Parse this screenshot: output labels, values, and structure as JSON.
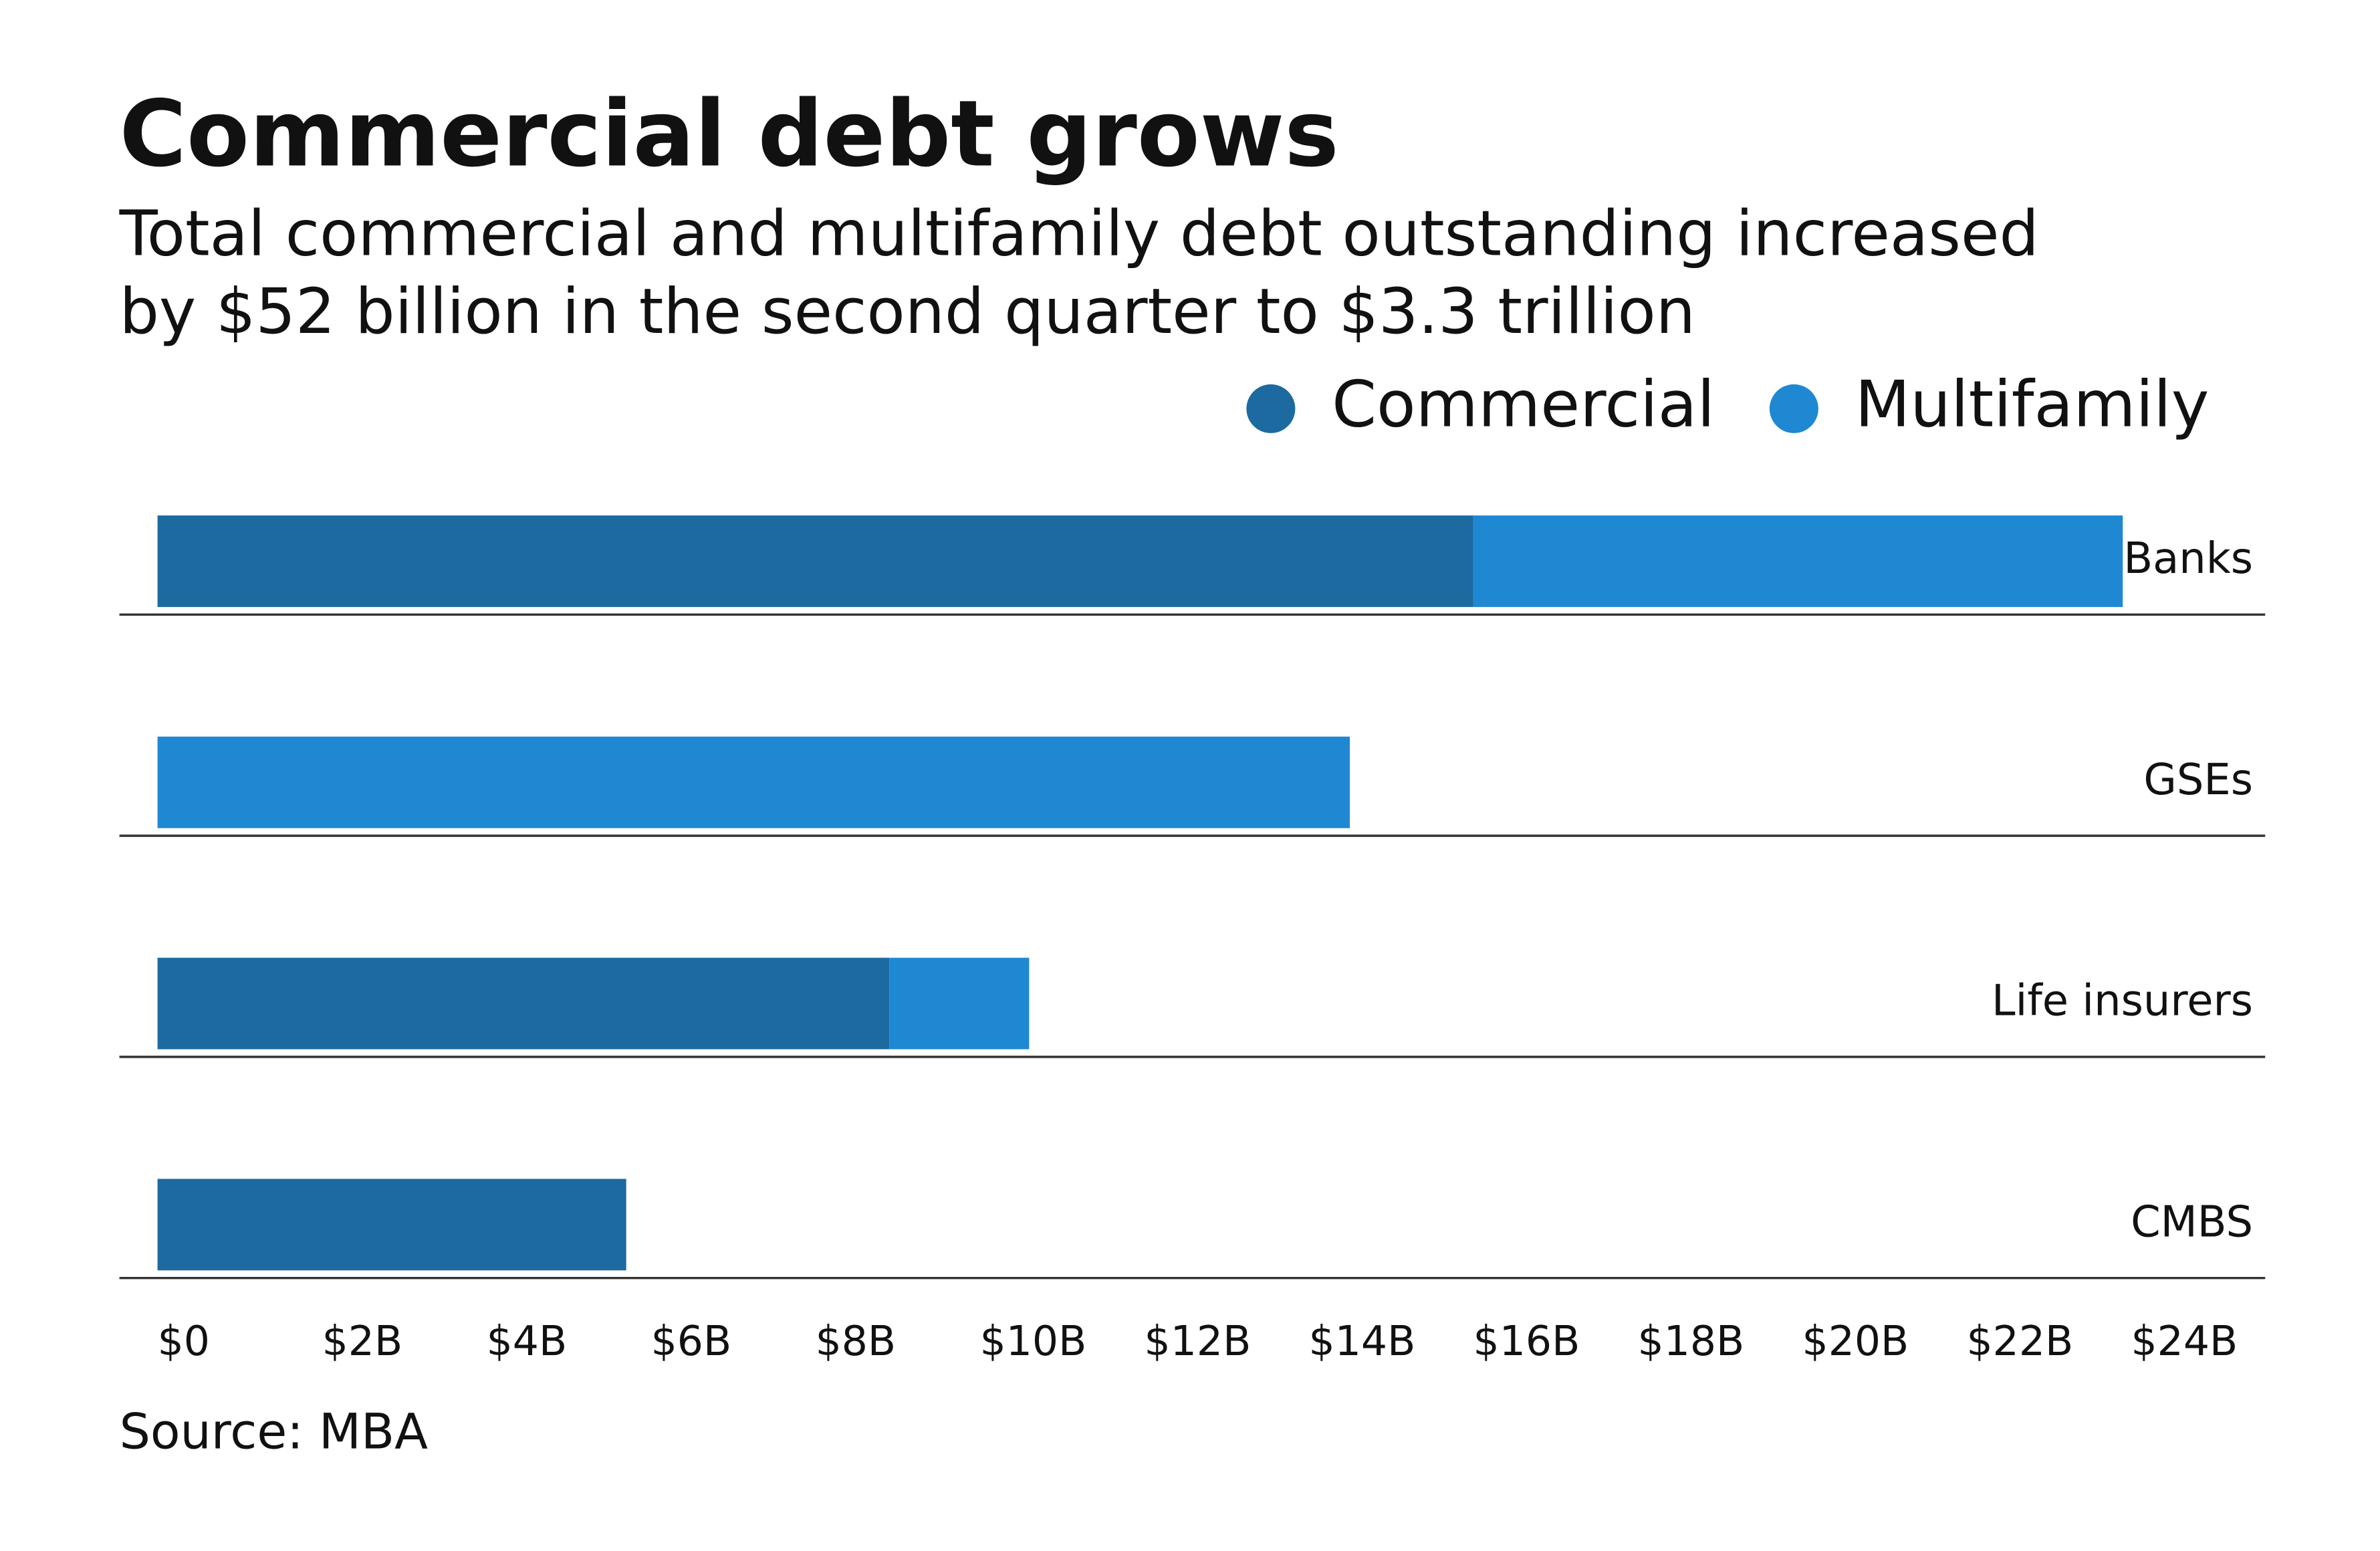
{
  "chart_data": {
    "type": "stacked-bar-horizontal",
    "title": "Commercial debt grows",
    "subtitle": [
      "Total commercial and multifamily debt outstanding increased",
      "by $52 billion in the second quarter to $3.3 trillion"
    ],
    "categories": [
      "Banks",
      "GSEs",
      "Life insurers",
      "CMBS"
    ],
    "series": [
      {
        "name": "Commercial",
        "color": "#1c6aa0",
        "values": [
          16,
          0,
          8.9,
          5.7
        ]
      },
      {
        "name": "Multifamily",
        "color": "#1e88d3",
        "values": [
          7.9,
          14.5,
          1.7,
          0
        ]
      }
    ],
    "xlim": [
      0,
      24
    ],
    "xticks": [
      {
        "value": 0,
        "label": "$0"
      },
      {
        "value": 2,
        "label": "$2B"
      },
      {
        "value": 4,
        "label": "$4B"
      },
      {
        "value": 6,
        "label": "$6B"
      },
      {
        "value": 8,
        "label": "$8B"
      },
      {
        "value": 10,
        "label": "$10B"
      },
      {
        "value": 12,
        "label": "$12B"
      },
      {
        "value": 14,
        "label": "$14B"
      },
      {
        "value": 16,
        "label": "$16B"
      },
      {
        "value": 18,
        "label": "$18B"
      },
      {
        "value": 20,
        "label": "$20B"
      },
      {
        "value": 22,
        "label": "$22B"
      },
      {
        "value": 24,
        "label": "$24B"
      }
    ],
    "source": "Source: MBA"
  }
}
